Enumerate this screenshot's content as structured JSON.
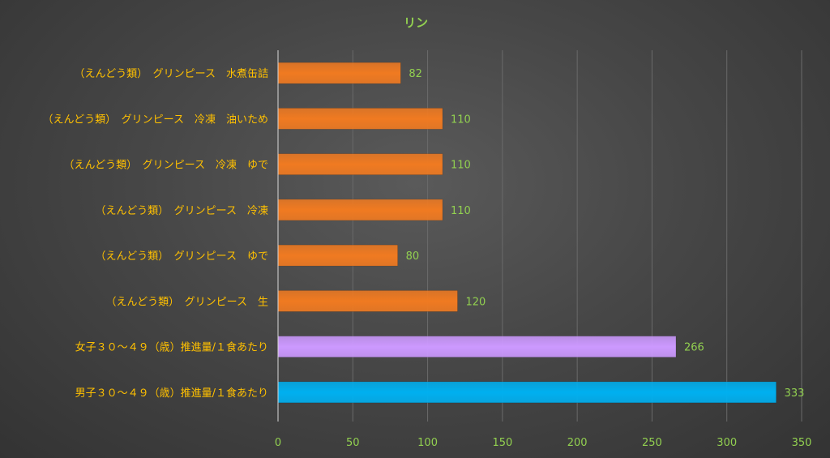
{
  "chart_data": {
    "type": "bar",
    "orientation": "horizontal",
    "title": "リン",
    "xlabel": "",
    "ylabel": "",
    "xlim": [
      0,
      350
    ],
    "x_ticks": [
      0,
      50,
      100,
      150,
      200,
      250,
      300,
      350
    ],
    "grid": "vertical",
    "legend": "none",
    "categories": [
      "（えんどう類）　グリンピース　水煮缶詰",
      "（えんどう類）　グリンピース　冷凍　油いため",
      "（えんどう類）　グリンピース　冷凍　ゆで",
      "（えんどう類）　グリンピース　冷凍",
      "（えんどう類）　グリンピース　ゆで",
      "（えんどう類）　グリンピース　生",
      "女子３０～４９（歳）推進量/１食あたり",
      "男子３０～４９（歳）推進量/１食あたり"
    ],
    "values": [
      82,
      110,
      110,
      110,
      80,
      120,
      266,
      333
    ],
    "bar_colors": [
      "#f07a21",
      "#f07a21",
      "#f07a21",
      "#f07a21",
      "#f07a21",
      "#f07a21",
      "#cc99ff",
      "#00b0f0"
    ],
    "colors": {
      "title": "#92d050",
      "category_text": "#ffc000",
      "tick_text": "#92d050",
      "data_label_text": "#92d050",
      "gridline": "#6a6a6a",
      "axis_line": "#d9d9d9"
    }
  }
}
